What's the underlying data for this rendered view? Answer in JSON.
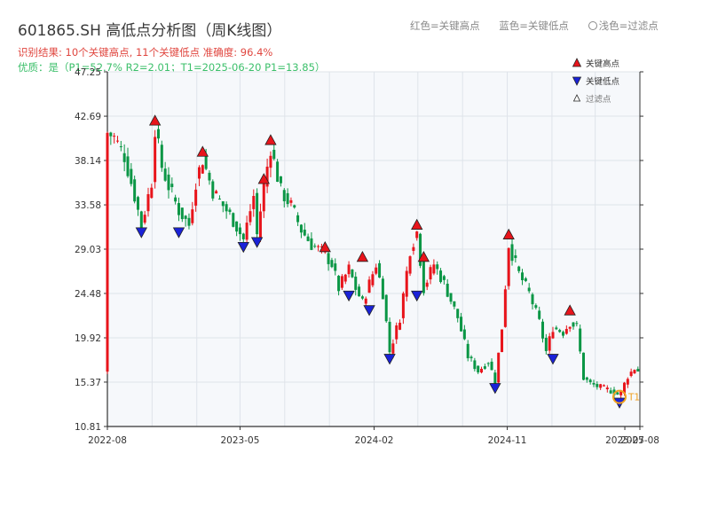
{
  "header": {
    "title": "601865.SH 高低点分析图（周K线图）",
    "result_line": "识别结果: 10个关键高点, 11个关键低点  准确度: 96.4%",
    "quality_line": "优质：是（P1=52.7%  R2=2.01；T1=2025-06-20 P1=13.85）",
    "color_note": [
      "红色=关键高点",
      "蓝色=关键低点",
      "浅色=过滤点"
    ]
  },
  "legend": {
    "items": [
      {
        "label": "关键高点",
        "color": "#e8141b"
      },
      {
        "label": "关键低点",
        "color": "#1a22d8"
      },
      {
        "label": "过滤点",
        "color": "#ffffff"
      }
    ]
  },
  "chart_data": {
    "type": "candlestick",
    "title": "601865.SH 高低点分析图（周K线图）",
    "y_ticks": [
      "10.81",
      "15.37",
      "19.92",
      "24.48",
      "29.03",
      "33.58",
      "38.14",
      "42.69",
      "47.25"
    ],
    "ylim": [
      10.81,
      47.25
    ],
    "x_ticks": [
      {
        "label": "2022-08",
        "date": "2022-08-01"
      },
      {
        "label": "2023-05",
        "date": "2023-05-01"
      },
      {
        "label": "2024-02",
        "date": "2024-02-01"
      },
      {
        "label": "2024-11",
        "date": "2024-11-01"
      },
      {
        "label": "2025-07",
        "date": "2025-07-01"
      },
      {
        "label": "2025-08",
        "date": "2025-08-01"
      }
    ],
    "xlim": [
      "2022-08-01",
      "2025-08-01"
    ],
    "colors": {
      "up": "#e8141b",
      "down": "#0a9645",
      "high": "#e8141b",
      "low": "#1a22d8",
      "t1": "#f0a020"
    },
    "price_path": [
      [
        "2022-08-01",
        41.0
      ],
      [
        "2022-08-15",
        40.5
      ],
      [
        "2022-09-05",
        38.6
      ],
      [
        "2022-09-26",
        34.5
      ],
      [
        "2022-10-10",
        31.5
      ],
      [
        "2022-10-31",
        36.0
      ],
      [
        "2022-11-07",
        41.5
      ],
      [
        "2022-11-21",
        37.5
      ],
      [
        "2022-12-05",
        35.5
      ],
      [
        "2022-12-26",
        33.0
      ],
      [
        "2023-01-16",
        31.5
      ],
      [
        "2023-01-30",
        36.0
      ],
      [
        "2023-02-13",
        38.3
      ],
      [
        "2023-03-06",
        35.0
      ],
      [
        "2023-03-27",
        33.5
      ],
      [
        "2023-04-17",
        32.0
      ],
      [
        "2023-05-08",
        30.0
      ],
      [
        "2023-05-29",
        34.5
      ],
      [
        "2023-06-05",
        30.5
      ],
      [
        "2023-06-19",
        35.5
      ],
      [
        "2023-07-03",
        39.5
      ],
      [
        "2023-07-24",
        35.0
      ],
      [
        "2023-08-14",
        33.5
      ],
      [
        "2023-09-04",
        31.0
      ],
      [
        "2023-09-25",
        29.5
      ],
      [
        "2023-10-23",
        28.5
      ],
      [
        "2023-11-06",
        27.5
      ],
      [
        "2023-11-20",
        25.0
      ],
      [
        "2023-12-11",
        27.0
      ],
      [
        "2023-12-25",
        25.0
      ],
      [
        "2024-01-08",
        23.5
      ],
      [
        "2024-01-22",
        25.5
      ],
      [
        "2024-02-05",
        27.5
      ],
      [
        "2024-02-19",
        24.5
      ],
      [
        "2024-03-04",
        18.5
      ],
      [
        "2024-03-25",
        22.0
      ],
      [
        "2024-04-15",
        29.0
      ],
      [
        "2024-04-29",
        30.8
      ],
      [
        "2024-05-13",
        25.0
      ],
      [
        "2024-06-03",
        27.5
      ],
      [
        "2024-06-24",
        25.5
      ],
      [
        "2024-07-22",
        22.0
      ],
      [
        "2024-08-12",
        18.0
      ],
      [
        "2024-09-02",
        16.5
      ],
      [
        "2024-09-23",
        17.5
      ],
      [
        "2024-10-07",
        15.5
      ],
      [
        "2024-10-21",
        21.0
      ],
      [
        "2024-11-04",
        29.5
      ],
      [
        "2024-11-25",
        26.5
      ],
      [
        "2024-12-16",
        24.5
      ],
      [
        "2025-01-06",
        21.5
      ],
      [
        "2025-01-20",
        18.5
      ],
      [
        "2025-02-03",
        21.0
      ],
      [
        "2025-02-24",
        20.5
      ],
      [
        "2025-03-10",
        21.5
      ],
      [
        "2025-03-24",
        21.0
      ],
      [
        "2025-04-07",
        15.8
      ],
      [
        "2025-04-21",
        15.2
      ],
      [
        "2025-05-12",
        14.8
      ],
      [
        "2025-06-02",
        14.5
      ],
      [
        "2025-06-20",
        14.0
      ],
      [
        "2025-07-07",
        16.0
      ],
      [
        "2025-07-21",
        16.8
      ],
      [
        "2025-08-01",
        16.4
      ]
    ],
    "key_highs": [
      {
        "date": "2022-11-07",
        "price": 41.5
      },
      {
        "date": "2023-02-13",
        "price": 38.3
      },
      {
        "date": "2023-06-19",
        "price": 35.5
      },
      {
        "date": "2023-07-03",
        "price": 39.5
      },
      {
        "date": "2023-10-23",
        "price": 28.5
      },
      {
        "date": "2024-01-08",
        "price": 27.5
      },
      {
        "date": "2024-04-29",
        "price": 30.8
      },
      {
        "date": "2024-05-13",
        "price": 27.5
      },
      {
        "date": "2024-11-04",
        "price": 29.8
      },
      {
        "date": "2025-03-10",
        "price": 22.0
      }
    ],
    "key_lows": [
      {
        "date": "2022-10-10",
        "price": 31.5
      },
      {
        "date": "2022-12-26",
        "price": 31.5
      },
      {
        "date": "2023-05-08",
        "price": 30.0
      },
      {
        "date": "2023-06-05",
        "price": 30.5
      },
      {
        "date": "2023-12-11",
        "price": 25.0
      },
      {
        "date": "2024-01-22",
        "price": 23.5
      },
      {
        "date": "2024-03-04",
        "price": 18.5
      },
      {
        "date": "2024-04-29",
        "price": 25.0
      },
      {
        "date": "2024-10-07",
        "price": 15.5
      },
      {
        "date": "2025-02-03",
        "price": 18.5
      },
      {
        "date": "2025-06-20",
        "price": 14.0
      }
    ],
    "t1": {
      "label": "T1",
      "date": "2025-06-20",
      "price": 13.85
    }
  }
}
